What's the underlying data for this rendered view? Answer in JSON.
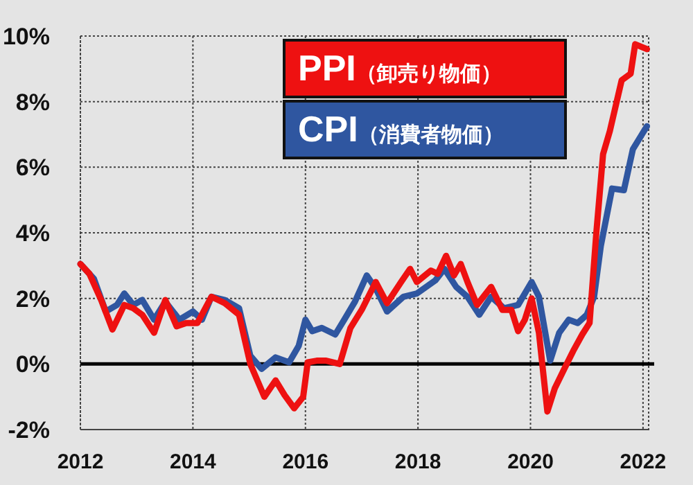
{
  "chart_data": {
    "type": "line",
    "xlim": [
      2012,
      2022.1
    ],
    "ylim": [
      -2,
      10
    ],
    "xticks": [
      2012,
      2014,
      2016,
      2018,
      2020,
      2022
    ],
    "yticks": [
      {
        "value": -2,
        "label": "-2%"
      },
      {
        "value": 0,
        "label": "0%"
      },
      {
        "value": 2,
        "label": "2%"
      },
      {
        "value": 4,
        "label": "4%"
      },
      {
        "value": 6,
        "label": "6%"
      },
      {
        "value": 8,
        "label": "8%"
      },
      {
        "value": 10,
        "label": "10%"
      }
    ],
    "grid": true,
    "legend": "top right",
    "line_style": "solid",
    "marker": "none",
    "ref_lines": [
      {
        "axis": "y",
        "value": 0,
        "color": "#000000"
      }
    ],
    "series": [
      {
        "name": "CPI（消費者物価）",
        "color": "#2f56a0",
        "x": [
          2012.0,
          2012.24,
          2012.45,
          2012.65,
          2012.78,
          2012.94,
          2013.1,
          2013.31,
          2013.51,
          2013.76,
          2014.0,
          2014.16,
          2014.33,
          2014.57,
          2014.82,
          2015.02,
          2015.22,
          2015.47,
          2015.71,
          2015.88,
          2016.0,
          2016.12,
          2016.29,
          2016.53,
          2016.69,
          2016.88,
          2017.09,
          2017.25,
          2017.45,
          2017.74,
          2017.98,
          2018.31,
          2018.47,
          2018.68,
          2018.88,
          2019.09,
          2019.3,
          2019.53,
          2019.78,
          2020.02,
          2020.15,
          2020.35,
          2020.51,
          2020.68,
          2020.84,
          2021.0,
          2021.13,
          2021.25,
          2021.45,
          2021.66,
          2021.82,
          2022.07
        ],
        "values": [
          3.05,
          2.6,
          1.6,
          1.8,
          2.15,
          1.8,
          1.95,
          1.35,
          1.9,
          1.35,
          1.6,
          1.35,
          2.05,
          1.95,
          1.7,
          0.25,
          -0.15,
          0.2,
          0.05,
          0.55,
          1.35,
          1.0,
          1.1,
          0.9,
          1.35,
          1.9,
          2.7,
          2.3,
          1.6,
          2.05,
          2.15,
          2.55,
          2.9,
          2.35,
          2.05,
          1.5,
          2.05,
          1.7,
          1.8,
          2.5,
          2.05,
          0.1,
          0.95,
          1.35,
          1.25,
          1.5,
          2.05,
          3.6,
          5.35,
          5.3,
          6.55,
          7.25
        ]
      },
      {
        "name": "PPI（卸売り物価）",
        "color": "#ee1111",
        "x": [
          2012.0,
          2012.16,
          2012.37,
          2012.57,
          2012.78,
          2012.94,
          2013.1,
          2013.31,
          2013.51,
          2013.71,
          2013.88,
          2014.08,
          2014.33,
          2014.57,
          2014.82,
          2015.02,
          2015.27,
          2015.47,
          2015.63,
          2015.8,
          2015.96,
          2016.04,
          2016.2,
          2016.37,
          2016.61,
          2016.8,
          2017.0,
          2017.25,
          2017.45,
          2017.7,
          2017.86,
          2017.98,
          2018.23,
          2018.35,
          2018.5,
          2018.64,
          2018.76,
          2018.88,
          2019.05,
          2019.3,
          2019.5,
          2019.66,
          2019.78,
          2019.9,
          2020.02,
          2020.15,
          2020.3,
          2020.43,
          2020.6,
          2020.76,
          2020.92,
          2021.05,
          2021.17,
          2021.29,
          2021.41,
          2021.62,
          2021.78,
          2021.86,
          2022.07
        ],
        "values": [
          3.05,
          2.75,
          1.95,
          1.05,
          1.8,
          1.7,
          1.5,
          0.95,
          1.95,
          1.15,
          1.25,
          1.25,
          2.05,
          1.85,
          1.5,
          0,
          -1.0,
          -0.5,
          -0.95,
          -1.35,
          -1.0,
          0.05,
          0.1,
          0.1,
          0,
          1.1,
          1.65,
          2.5,
          1.85,
          2.5,
          2.9,
          2.5,
          2.85,
          2.75,
          3.3,
          2.7,
          3.05,
          2.5,
          1.8,
          2.35,
          1.65,
          1.65,
          1.0,
          1.35,
          2.0,
          0.95,
          -1.45,
          -0.75,
          -0.15,
          0.4,
          0.9,
          1.25,
          4.0,
          6.4,
          7.1,
          8.65,
          8.85,
          9.75,
          9.6
        ]
      }
    ]
  }
}
